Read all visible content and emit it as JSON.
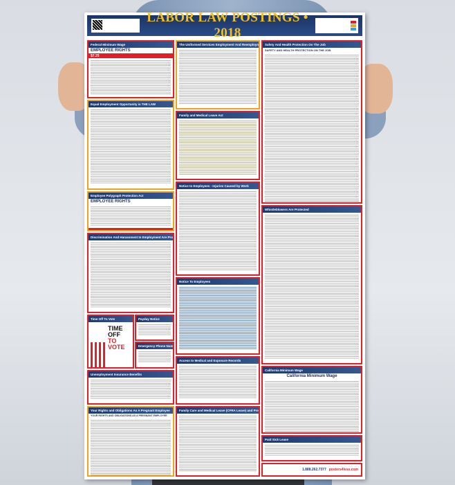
{
  "poster": {
    "title": "LABOR LAW POSTINGS • 2018",
    "sections": {
      "federal_min_wage": {
        "heading": "Federal Minimum Wage",
        "banner": "EMPLOYEE RIGHTS",
        "rate": "$7.25"
      },
      "userra": {
        "heading": "The Uniformed Services Employment And Reemployment Rights Act"
      },
      "safety": {
        "heading": "Safety And Health Protection On The Job",
        "banner": "SAFETY AND HEALTH PROTECTION ON THE JOB"
      },
      "eeo": {
        "heading": "Equal Employment Opportunity is THE LAW"
      },
      "fmla": {
        "heading": "Family and Medical Leave Act"
      },
      "polygraph": {
        "heading": "Employee Polygraph Protection Act",
        "banner": "EMPLOYEE RIGHTS"
      },
      "injuries": {
        "heading": "Notice to Employees - Injuries Caused by Work"
      },
      "whistleblowers": {
        "heading": "Whistleblowers Are Protected"
      },
      "discrimination": {
        "heading": "Discrimination And Harassment In Employment Are Prohibited By Law"
      },
      "notice": {
        "heading": "Notice To Employees"
      },
      "vote": {
        "heading": "Time Off To Vote",
        "line1": "TIME OFF",
        "line2": "TO VOTE"
      },
      "payday": {
        "heading": "Payday Notice"
      },
      "emergency": {
        "heading": "Emergency Phone Numbers"
      },
      "records": {
        "heading": "Access to Medical and Exposure Records"
      },
      "unemployment": {
        "heading": "Unemployment Insurance Benefits"
      },
      "ca_min_wage": {
        "heading": "California Minimum Wage",
        "banner": "California Minimum Wage"
      },
      "pregnant": {
        "heading": "Your Rights and Obligations As A Pregnant Employee",
        "banner": "YOUR RIGHTS AND OBLIGATIONS AS A PREGNANT EMPLOYEE"
      },
      "cfra": {
        "heading": "Family Care and Medical Leave (CFRA Leave) and Pregnancy Disability Leave"
      },
      "sick_leave": {
        "heading": "Paid Sick Leave"
      }
    },
    "footer": {
      "phone": "1.888.262.7377",
      "site": "posters4less.com"
    }
  },
  "colors": {
    "header": "#1b3566",
    "title": "#f2c01e",
    "border": "#e21f26"
  }
}
